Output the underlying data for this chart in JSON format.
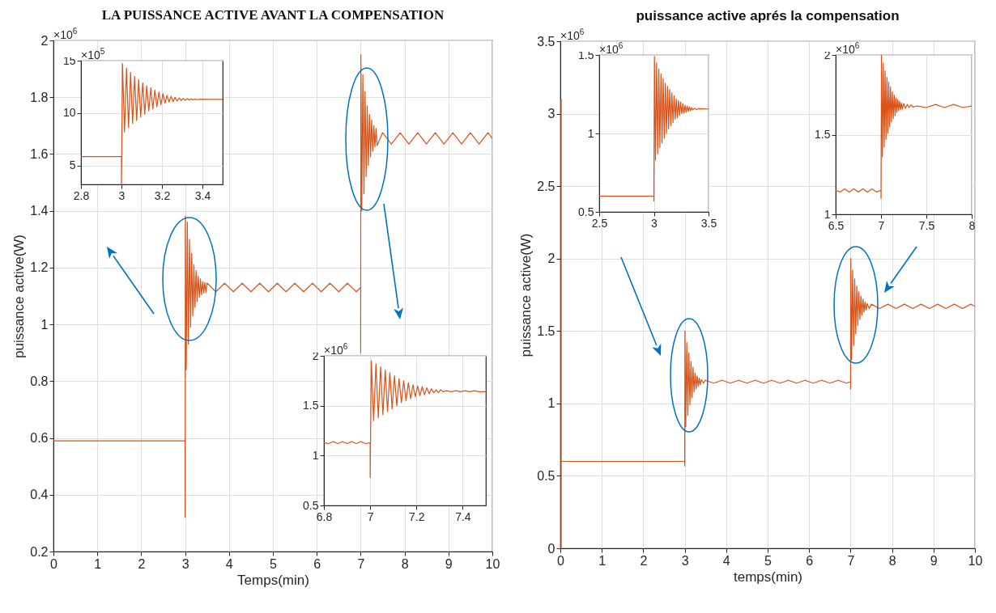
{
  "chart_data": [
    {
      "type": "line",
      "title": "LA PUISSANCE ACTIVE AVANT LA COMPENSATION",
      "xlabel": "Temps(min)",
      "ylabel": "puissance active(W)",
      "xlim": [
        0,
        10
      ],
      "ylim": [
        0.2,
        2
      ],
      "xticks": [
        0,
        1,
        2,
        3,
        4,
        5,
        6,
        7,
        8,
        9,
        10
      ],
      "yticks": [
        0.2,
        0.4,
        0.6,
        0.8,
        1,
        1.2,
        1.4,
        1.6,
        1.8,
        2
      ],
      "grid": true,
      "annotations": [
        "×10$^{6}$"
      ],
      "series": [
        {
          "color": "#d95319",
          "x": [
            0,
            3,
            3,
            3.005,
            3.025,
            3.05,
            3.075,
            3.1,
            3.125,
            3.15,
            3.175,
            3.2,
            3.225,
            3.25,
            3.275,
            3.3,
            3.325,
            3.35,
            3.375,
            3.4,
            3.425,
            3.45,
            3.475,
            3.5,
            3.7,
            3.9,
            4.1,
            4.3,
            4.5,
            4.7,
            4.9,
            5.1,
            5.3,
            5.5,
            5.7,
            5.9,
            6.1,
            6.3,
            6.5,
            6.7,
            6.9,
            7,
            7,
            7.005,
            7.025,
            7.05,
            7.075,
            7.1,
            7.125,
            7.15,
            7.175,
            7.2,
            7.225,
            7.25,
            7.275,
            7.3,
            7.325,
            7.35,
            7.375,
            7.5,
            7.7,
            7.9,
            8.1,
            8.3,
            8.5,
            8.7,
            8.9,
            9.1,
            9.3,
            9.5,
            9.7,
            9.9,
            10
          ],
          "values": [
            0.59,
            0.59,
            0.32,
            1.38,
            0.84,
            1.36,
            0.93,
            1.3,
            0.99,
            1.25,
            1.03,
            1.21,
            1.06,
            1.19,
            1.08,
            1.17,
            1.095,
            1.16,
            1.105,
            1.15,
            1.11,
            1.148,
            1.112,
            1.146,
            1.115,
            1.145,
            1.115,
            1.145,
            1.115,
            1.145,
            1.115,
            1.145,
            1.115,
            1.145,
            1.115,
            1.145,
            1.115,
            1.145,
            1.115,
            1.145,
            1.115,
            1.13,
            0.9,
            1.95,
            1.4,
            1.88,
            1.46,
            1.82,
            1.52,
            1.77,
            1.56,
            1.74,
            1.59,
            1.72,
            1.61,
            1.7,
            1.625,
            1.69,
            1.63,
            1.675,
            1.635,
            1.675,
            1.635,
            1.675,
            1.635,
            1.675,
            1.635,
            1.675,
            1.635,
            1.675,
            1.635,
            1.675,
            1.655
          ]
        }
      ]
    },
    {
      "type": "line",
      "xlim": [
        2.8,
        3.5
      ],
      "ylim": [
        3.2,
        15
      ],
      "xticks": [
        2.8,
        3,
        3.2,
        3.4
      ],
      "yticks": [
        5,
        10,
        15
      ],
      "grid": true,
      "annotations": [
        "×10$^{5}$"
      ],
      "series": [
        {
          "color": "#d95319",
          "x": [
            2.8,
            3,
            3,
            3.005,
            3.015,
            3.025,
            3.035,
            3.045,
            3.055,
            3.065,
            3.075,
            3.085,
            3.095,
            3.105,
            3.115,
            3.125,
            3.135,
            3.145,
            3.155,
            3.165,
            3.175,
            3.185,
            3.195,
            3.205,
            3.215,
            3.225,
            3.235,
            3.245,
            3.255,
            3.265,
            3.275,
            3.285,
            3.295,
            3.305,
            3.315,
            3.325,
            3.335,
            3.345,
            3.355,
            3.365,
            3.375,
            3.385,
            3.5
          ],
          "values": [
            5.85,
            5.85,
            3.2,
            14.7,
            8.2,
            14.3,
            8.6,
            13.9,
            9,
            13.5,
            9.3,
            13.2,
            9.6,
            12.9,
            9.9,
            12.6,
            10.2,
            12.4,
            10.4,
            12.2,
            10.6,
            12,
            10.8,
            11.85,
            10.95,
            11.7,
            11.05,
            11.6,
            11.1,
            11.5,
            11.15,
            11.45,
            11.2,
            11.4,
            11.22,
            11.37,
            11.25,
            11.35,
            11.27,
            11.33,
            11.28,
            11.32,
            11.3
          ]
        }
      ]
    },
    {
      "type": "line",
      "xlim": [
        6.8,
        7.5
      ],
      "ylim": [
        0.5,
        2
      ],
      "xticks": [
        6.8,
        7,
        7.2,
        7.4
      ],
      "yticks": [
        0.5,
        1,
        1.5,
        2
      ],
      "grid": true,
      "annotations": [
        "×10$^{6}$"
      ],
      "series": [
        {
          "color": "#d95319",
          "x": [
            6.8,
            6.82,
            6.84,
            6.86,
            6.88,
            6.9,
            6.92,
            6.94,
            6.96,
            6.98,
            7,
            7,
            7.005,
            7.015,
            7.025,
            7.035,
            7.045,
            7.055,
            7.065,
            7.075,
            7.085,
            7.095,
            7.105,
            7.115,
            7.125,
            7.135,
            7.145,
            7.155,
            7.165,
            7.175,
            7.185,
            7.195,
            7.205,
            7.215,
            7.225,
            7.235,
            7.245,
            7.255,
            7.265,
            7.275,
            7.285,
            7.295,
            7.305,
            7.315,
            7.33,
            7.35,
            7.37,
            7.39,
            7.41,
            7.43,
            7.45,
            7.47,
            7.5
          ],
          "values": [
            1.13,
            1.12,
            1.14,
            1.12,
            1.14,
            1.12,
            1.14,
            1.12,
            1.14,
            1.12,
            1.13,
            0.78,
            1.95,
            1.35,
            1.92,
            1.38,
            1.89,
            1.41,
            1.86,
            1.44,
            1.83,
            1.47,
            1.8,
            1.5,
            1.77,
            1.53,
            1.75,
            1.55,
            1.73,
            1.57,
            1.71,
            1.59,
            1.7,
            1.6,
            1.69,
            1.61,
            1.68,
            1.62,
            1.67,
            1.63,
            1.66,
            1.63,
            1.66,
            1.64,
            1.65,
            1.64,
            1.65,
            1.64,
            1.65,
            1.64,
            1.65,
            1.64,
            1.64
          ]
        }
      ]
    },
    {
      "type": "line",
      "title": "puissance active aprés la compensation",
      "xlabel": "temps(min)",
      "ylabel": "puissance active(W)",
      "xlim": [
        0,
        10
      ],
      "ylim": [
        0,
        3.5
      ],
      "xticks": [
        0,
        1,
        2,
        3,
        4,
        5,
        6,
        7,
        8,
        9,
        10
      ],
      "yticks": [
        0,
        0.5,
        1,
        1.5,
        2,
        2.5,
        3,
        3.5
      ],
      "grid": true,
      "annotations": [
        "×10$^{6}$"
      ],
      "series": [
        {
          "color": "#d95319",
          "x": [
            0.02,
            0.02,
            0.02,
            3,
            3,
            3.005,
            3.025,
            3.05,
            3.075,
            3.1,
            3.125,
            3.15,
            3.175,
            3.2,
            3.225,
            3.25,
            3.275,
            3.3,
            3.325,
            3.35,
            3.375,
            3.4,
            3.45,
            3.5,
            3.7,
            3.9,
            4.1,
            4.3,
            4.5,
            4.7,
            4.9,
            5.1,
            5.3,
            5.5,
            5.7,
            5.9,
            6.1,
            6.3,
            6.5,
            6.7,
            6.9,
            7,
            7,
            7.005,
            7.025,
            7.05,
            7.075,
            7.1,
            7.125,
            7.15,
            7.175,
            7.2,
            7.225,
            7.25,
            7.275,
            7.3,
            7.325,
            7.35,
            7.375,
            7.4,
            7.45,
            7.5,
            7.7,
            7.9,
            8.1,
            8.3,
            8.5,
            8.7,
            8.9,
            9.1,
            9.3,
            9.5,
            9.7,
            9.9,
            10
          ],
          "values": [
            0,
            3.1,
            0.6,
            0.6,
            0.57,
            1.5,
            0.84,
            1.42,
            0.92,
            1.35,
            0.99,
            1.29,
            1.04,
            1.25,
            1.08,
            1.21,
            1.1,
            1.19,
            1.12,
            1.175,
            1.13,
            1.165,
            1.14,
            1.16,
            1.14,
            1.16,
            1.14,
            1.16,
            1.14,
            1.16,
            1.14,
            1.16,
            1.14,
            1.16,
            1.14,
            1.16,
            1.14,
            1.16,
            1.14,
            1.16,
            1.14,
            1.15,
            1.1,
            2,
            1.3,
            1.92,
            1.4,
            1.86,
            1.48,
            1.81,
            1.54,
            1.77,
            1.58,
            1.74,
            1.61,
            1.72,
            1.63,
            1.7,
            1.645,
            1.69,
            1.655,
            1.685,
            1.655,
            1.685,
            1.655,
            1.685,
            1.655,
            1.685,
            1.655,
            1.685,
            1.655,
            1.685,
            1.655,
            1.685,
            1.67
          ]
        }
      ]
    },
    {
      "type": "line",
      "xlim": [
        2.5,
        3.5
      ],
      "ylim": [
        0.5,
        1.5
      ],
      "xticks": [
        2.5,
        3,
        3.5
      ],
      "yticks": [
        0.5,
        1,
        1.5
      ],
      "grid": true,
      "annotations": [
        "×10$^{6}$"
      ],
      "series": [
        {
          "color": "#d95319",
          "x": [
            2.5,
            3,
            3,
            3.005,
            3.015,
            3.025,
            3.035,
            3.045,
            3.055,
            3.065,
            3.075,
            3.085,
            3.095,
            3.105,
            3.115,
            3.125,
            3.135,
            3.145,
            3.155,
            3.165,
            3.175,
            3.185,
            3.195,
            3.205,
            3.215,
            3.225,
            3.235,
            3.245,
            3.255,
            3.265,
            3.275,
            3.285,
            3.295,
            3.305,
            3.315,
            3.325,
            3.335,
            3.345,
            3.355,
            3.37,
            3.39,
            3.41,
            3.5
          ],
          "values": [
            0.6,
            0.6,
            0.57,
            1.49,
            0.83,
            1.45,
            0.87,
            1.41,
            0.91,
            1.38,
            0.94,
            1.35,
            0.97,
            1.32,
            1,
            1.3,
            1.03,
            1.28,
            1.05,
            1.26,
            1.07,
            1.24,
            1.09,
            1.22,
            1.1,
            1.21,
            1.115,
            1.2,
            1.125,
            1.19,
            1.13,
            1.18,
            1.135,
            1.175,
            1.14,
            1.17,
            1.145,
            1.165,
            1.15,
            1.16,
            1.152,
            1.158,
            1.156
          ]
        }
      ]
    },
    {
      "type": "line",
      "xlim": [
        6.5,
        8
      ],
      "ylim": [
        1,
        2
      ],
      "xticks": [
        6.5,
        7,
        7.5,
        8
      ],
      "yticks": [
        1,
        1.5,
        2
      ],
      "grid": true,
      "annotations": [
        "×10$^{6}$"
      ],
      "series": [
        {
          "color": "#d95319",
          "x": [
            6.5,
            6.55,
            6.6,
            6.65,
            6.7,
            6.75,
            6.8,
            6.85,
            6.9,
            6.95,
            7,
            7,
            7.005,
            7.015,
            7.025,
            7.035,
            7.045,
            7.055,
            7.065,
            7.075,
            7.085,
            7.095,
            7.105,
            7.115,
            7.125,
            7.135,
            7.145,
            7.155,
            7.165,
            7.175,
            7.185,
            7.195,
            7.205,
            7.215,
            7.225,
            7.235,
            7.25,
            7.27,
            7.29,
            7.31,
            7.33,
            7.35,
            7.4,
            7.5,
            7.6,
            7.7,
            7.8,
            7.9,
            8
          ],
          "values": [
            1.15,
            1.14,
            1.16,
            1.14,
            1.16,
            1.14,
            1.16,
            1.14,
            1.16,
            1.14,
            1.15,
            1.1,
            2,
            1.36,
            1.95,
            1.42,
            1.9,
            1.47,
            1.86,
            1.51,
            1.83,
            1.55,
            1.8,
            1.58,
            1.77,
            1.6,
            1.75,
            1.62,
            1.73,
            1.64,
            1.72,
            1.65,
            1.71,
            1.655,
            1.7,
            1.66,
            1.695,
            1.665,
            1.69,
            1.67,
            1.687,
            1.673,
            1.68,
            1.67,
            1.69,
            1.67,
            1.69,
            1.67,
            1.68
          ]
        }
      ]
    }
  ]
}
